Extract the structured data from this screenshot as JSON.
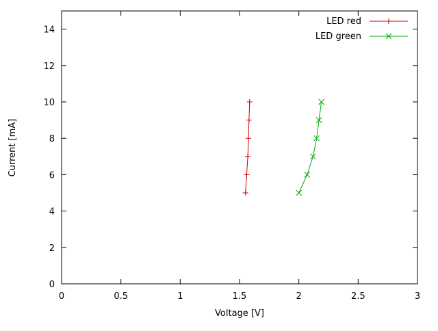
{
  "chart_data": {
    "type": "line",
    "title": "",
    "xlabel": "Voltage [V]",
    "ylabel": "Current [mA]",
    "xlim": [
      0,
      3
    ],
    "ylim": [
      0,
      15
    ],
    "grid": false,
    "legend_position": "top-right-inside",
    "background": "#ffffff",
    "border_color": "#000000",
    "xticks": {
      "values": [
        0,
        0.5,
        1,
        1.5,
        2,
        2.5,
        3
      ],
      "labels": [
        "0",
        "0.5",
        "1",
        "1.5",
        "2",
        "2.5",
        "3"
      ]
    },
    "yticks": {
      "values": [
        0,
        2,
        4,
        6,
        8,
        10,
        12,
        14
      ],
      "labels": [
        "0",
        "2",
        "4",
        "6",
        "8",
        "10",
        "12",
        "14"
      ]
    },
    "series": [
      {
        "name": "LED red",
        "color": "#cc0000",
        "marker": "plus",
        "points": [
          [
            1.55,
            5
          ],
          [
            1.56,
            6
          ],
          [
            1.57,
            7
          ],
          [
            1.575,
            8
          ],
          [
            1.58,
            9
          ],
          [
            1.585,
            10
          ]
        ]
      },
      {
        "name": "LED green",
        "color": "#00aa00",
        "marker": "cross",
        "points": [
          [
            2.0,
            5
          ],
          [
            2.07,
            6
          ],
          [
            2.12,
            7
          ],
          [
            2.15,
            8
          ],
          [
            2.17,
            9
          ],
          [
            2.19,
            10
          ]
        ]
      }
    ]
  }
}
